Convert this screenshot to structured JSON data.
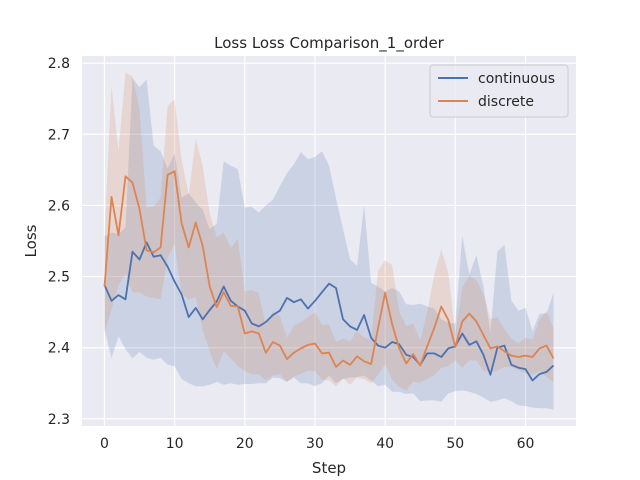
{
  "chart_data": {
    "type": "line",
    "title": "Loss Loss Comparison_1_order",
    "xlabel": "Step",
    "ylabel": "Loss",
    "xlim": [
      -3.2,
      67.2
    ],
    "ylim": [
      2.29,
      2.81
    ],
    "xticks": [
      0,
      10,
      20,
      30,
      40,
      50,
      60
    ],
    "yticks": [
      2.3,
      2.4,
      2.5,
      2.6,
      2.7,
      2.8
    ],
    "grid": true,
    "legend_position": "top-right",
    "band": "shaded interval around each mean line",
    "series": [
      {
        "name": "continuous",
        "color": "#4c72b0",
        "x": [
          0,
          1,
          2,
          3,
          4,
          5,
          6,
          7,
          8,
          9,
          10,
          11,
          12,
          13,
          14,
          15,
          16,
          17,
          18,
          19,
          20,
          21,
          22,
          23,
          24,
          25,
          26,
          27,
          28,
          29,
          30,
          31,
          32,
          33,
          34,
          35,
          36,
          37,
          38,
          39,
          40,
          41,
          42,
          43,
          44,
          45,
          46,
          47,
          48,
          49,
          50,
          51,
          52,
          53,
          54,
          55,
          56,
          57,
          58,
          59,
          60,
          61,
          62,
          63,
          64
        ],
        "mean": [
          2.488,
          2.466,
          2.474,
          2.468,
          2.535,
          2.524,
          2.548,
          2.528,
          2.53,
          2.514,
          2.493,
          2.475,
          2.443,
          2.456,
          2.44,
          2.453,
          2.465,
          2.486,
          2.466,
          2.458,
          2.452,
          2.434,
          2.43,
          2.436,
          2.446,
          2.452,
          2.47,
          2.464,
          2.468,
          2.455,
          2.466,
          2.478,
          2.49,
          2.484,
          2.44,
          2.43,
          2.425,
          2.446,
          2.414,
          2.403,
          2.4,
          2.408,
          2.405,
          2.39,
          2.387,
          2.376,
          2.392,
          2.392,
          2.387,
          2.399,
          2.402,
          2.42,
          2.404,
          2.409,
          2.39,
          2.362,
          2.4,
          2.403,
          2.376,
          2.372,
          2.37,
          2.354,
          2.363,
          2.366,
          2.375
        ],
        "lower": [
          2.426,
          2.385,
          2.416,
          2.398,
          2.385,
          2.394,
          2.386,
          2.383,
          2.386,
          2.376,
          2.374,
          2.356,
          2.35,
          2.346,
          2.346,
          2.348,
          2.352,
          2.348,
          2.35,
          2.348,
          2.349,
          2.349,
          2.35,
          2.35,
          2.358,
          2.357,
          2.352,
          2.358,
          2.35,
          2.35,
          2.346,
          2.35,
          2.361,
          2.35,
          2.356,
          2.358,
          2.359,
          2.361,
          2.354,
          2.346,
          2.348,
          2.338,
          2.338,
          2.335,
          2.336,
          2.325,
          2.326,
          2.326,
          2.324,
          2.336,
          2.339,
          2.34,
          2.338,
          2.335,
          2.33,
          2.324,
          2.326,
          2.329,
          2.325,
          2.319,
          2.318,
          2.316,
          2.315,
          2.315,
          2.313
        ],
        "upper": [
          2.556,
          2.562,
          2.56,
          2.569,
          2.779,
          2.766,
          2.777,
          2.684,
          2.676,
          2.652,
          2.673,
          2.611,
          2.617,
          2.604,
          2.594,
          2.567,
          2.574,
          2.662,
          2.656,
          2.651,
          2.597,
          2.598,
          2.59,
          2.6,
          2.608,
          2.627,
          2.645,
          2.658,
          2.675,
          2.665,
          2.668,
          2.676,
          2.656,
          2.61,
          2.567,
          2.524,
          2.515,
          2.6,
          2.491,
          2.486,
          2.479,
          2.484,
          2.479,
          2.461,
          2.46,
          2.462,
          2.458,
          2.455,
          2.44,
          2.435,
          2.434,
          2.557,
          2.503,
          2.53,
          2.486,
          2.421,
          2.535,
          2.545,
          2.466,
          2.452,
          2.456,
          2.423,
          2.448,
          2.448,
          2.477
        ]
      },
      {
        "name": "discrete",
        "color": "#dd8452",
        "x": [
          0,
          1,
          2,
          3,
          4,
          5,
          6,
          7,
          8,
          9,
          10,
          11,
          12,
          13,
          14,
          15,
          16,
          17,
          18,
          19,
          20,
          21,
          22,
          23,
          24,
          25,
          26,
          27,
          28,
          29,
          30,
          31,
          32,
          33,
          34,
          35,
          36,
          37,
          38,
          39,
          40,
          41,
          42,
          43,
          44,
          45,
          46,
          47,
          48,
          49,
          50,
          51,
          52,
          53,
          54,
          55,
          56,
          57,
          58,
          59,
          60,
          61,
          62,
          63,
          64
        ],
        "mean": [
          2.486,
          2.612,
          2.558,
          2.641,
          2.632,
          2.595,
          2.537,
          2.534,
          2.541,
          2.643,
          2.648,
          2.575,
          2.541,
          2.576,
          2.543,
          2.486,
          2.457,
          2.478,
          2.459,
          2.458,
          2.42,
          2.423,
          2.42,
          2.393,
          2.408,
          2.403,
          2.384,
          2.393,
          2.399,
          2.404,
          2.406,
          2.392,
          2.393,
          2.373,
          2.382,
          2.376,
          2.388,
          2.381,
          2.377,
          2.428,
          2.477,
          2.433,
          2.399,
          2.378,
          2.391,
          2.375,
          2.402,
          2.428,
          2.458,
          2.439,
          2.401,
          2.437,
          2.448,
          2.437,
          2.418,
          2.399,
          2.402,
          2.395,
          2.389,
          2.387,
          2.389,
          2.387,
          2.399,
          2.403,
          2.385
        ],
        "lower": [
          2.421,
          2.454,
          2.488,
          2.504,
          2.478,
          2.478,
          2.472,
          2.47,
          2.468,
          2.526,
          2.546,
          2.475,
          2.468,
          2.471,
          2.425,
          2.395,
          2.37,
          2.395,
          2.385,
          2.374,
          2.367,
          2.363,
          2.363,
          2.354,
          2.361,
          2.363,
          2.352,
          2.36,
          2.363,
          2.368,
          2.367,
          2.355,
          2.354,
          2.346,
          2.357,
          2.348,
          2.358,
          2.356,
          2.35,
          2.362,
          2.377,
          2.355,
          2.345,
          2.34,
          2.352,
          2.351,
          2.356,
          2.362,
          2.372,
          2.374,
          2.382,
          2.372,
          2.382,
          2.382,
          2.368,
          2.365,
          2.368,
          2.373,
          2.373,
          2.368,
          2.364,
          2.362,
          2.367,
          2.359,
          2.352
        ],
        "upper": [
          2.557,
          2.768,
          2.677,
          2.787,
          2.781,
          2.735,
          2.597,
          2.598,
          2.611,
          2.74,
          2.749,
          2.664,
          2.615,
          2.694,
          2.655,
          2.589,
          2.555,
          2.562,
          2.54,
          2.553,
          2.479,
          2.481,
          2.477,
          2.431,
          2.451,
          2.444,
          2.414,
          2.431,
          2.436,
          2.443,
          2.45,
          2.432,
          2.433,
          2.408,
          2.413,
          2.409,
          2.424,
          2.414,
          2.411,
          2.508,
          2.523,
          2.516,
          2.451,
          2.43,
          2.434,
          2.41,
          2.45,
          2.503,
          2.538,
          2.505,
          2.42,
          2.484,
          2.501,
          2.495,
          2.475,
          2.44,
          2.443,
          2.426,
          2.413,
          2.406,
          2.414,
          2.411,
          2.439,
          2.452,
          2.427
        ]
      }
    ]
  }
}
